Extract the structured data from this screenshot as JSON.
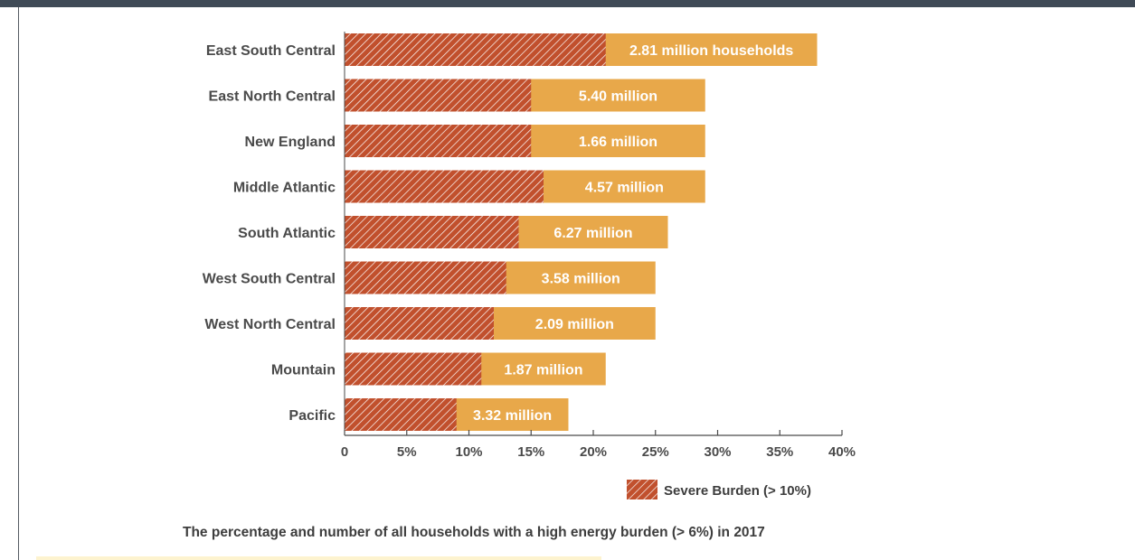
{
  "colors": {
    "total_bar": "#e8a84a",
    "severe_bar": "#c1502d",
    "hatch_line": "#ffffff",
    "header_bar": "#3f4a56",
    "text": "#4a4a4a"
  },
  "chart_data": {
    "type": "bar",
    "orientation": "horizontal",
    "categories": [
      "East South Central",
      "East North Central",
      "New England",
      "Middle Atlantic",
      "South Atlantic",
      "West South Central",
      "West North Central",
      "Mountain",
      "Pacific"
    ],
    "series": [
      {
        "name": "",
        "values": [
          38,
          29,
          29,
          29,
          26,
          25,
          25,
          21,
          18
        ]
      },
      {
        "name": "Severe Burden (> 10%)",
        "values": [
          21,
          15,
          15,
          16,
          14,
          13,
          12,
          11,
          9
        ]
      }
    ],
    "data_labels": [
      "2.81 million  households",
      "5.40 million",
      "1.66 million",
      "4.57 million",
      "6.27 million",
      "3.58 million",
      "2.09 million",
      "1.87 million",
      "3.32 million"
    ],
    "x_ticks": [
      "0",
      "5%",
      "10%",
      "15%",
      "20%",
      "25%",
      "30%",
      "35%",
      "40%"
    ],
    "xlim": [
      0,
      40
    ],
    "grid": false,
    "legend": {
      "label": "Severe Burden (> 10%)",
      "placement": "bottom-right"
    },
    "caption": "The percentage and number of all households with a high energy burden (> 6%) in 2017"
  }
}
